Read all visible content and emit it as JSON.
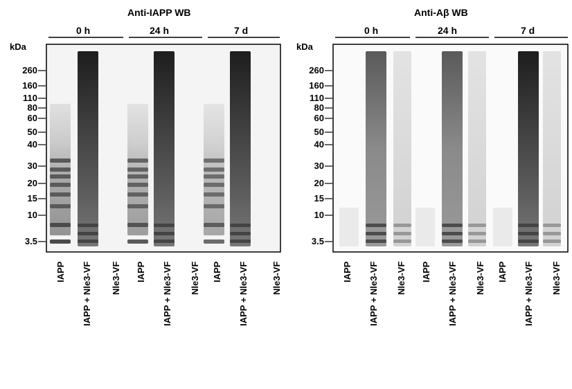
{
  "panels": [
    {
      "title": "Anti-IAPP WB",
      "timepoints": [
        "0 h",
        "24 h",
        "7 d"
      ],
      "lanes": [
        "IAPP",
        "IAPP + Nle3-VF",
        "Nle3-VF",
        "IAPP",
        "IAPP + Nle3-VF",
        "Nle3-VF",
        "IAPP",
        "IAPP + Nle3-VF",
        "Nle3-VF"
      ]
    },
    {
      "title": "Anti-Aβ WB",
      "timepoints": [
        "0 h",
        "24 h",
        "7 d"
      ],
      "lanes": [
        "IAPP",
        "IAPP + Nle3-VF",
        "Nle3-VF",
        "IAPP",
        "IAPP + Nle3-VF",
        "Nle3-VF",
        "IAPP",
        "IAPP + Nle3-VF",
        "Nle3-VF"
      ]
    }
  ],
  "kda_label": "kDa",
  "markers": [
    "260",
    "160",
    "110",
    "80",
    "60",
    "50",
    "40",
    "30",
    "20",
    "15",
    "10",
    "3.5"
  ]
}
